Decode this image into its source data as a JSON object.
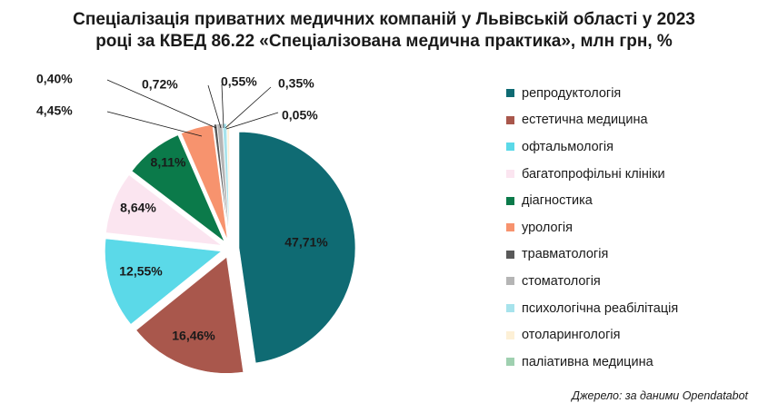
{
  "chart_data": {
    "type": "pie",
    "title": "Спеціалізація приватних медичних компаній у Львівській області у 2023 році за КВЕД 86.22 «Спеціалізована медична практика», млн грн, %",
    "title_lines": [
      "Спеціалізація приватних медичних компаній у Львівській області у 2023",
      "році за КВЕД 86.22 «Спеціалізована медична практика», млн грн, %"
    ],
    "legend_position": "right",
    "exploded": true,
    "slices": [
      {
        "name": "репродуктологія",
        "value": 47.71,
        "label": "47,71%",
        "color": "#0f6b73"
      },
      {
        "name": "естетична медицина",
        "value": 16.46,
        "label": "16,46%",
        "color": "#a9574c"
      },
      {
        "name": "офтальмологія",
        "value": 12.55,
        "label": "12,55%",
        "color": "#5bd9e8"
      },
      {
        "name": "багатопрофільні клініки",
        "value": 8.64,
        "label": "8,64%",
        "color": "#fbe5f0"
      },
      {
        "name": "діагностика",
        "value": 8.11,
        "label": "8,11%",
        "color": "#0b7a4a"
      },
      {
        "name": "урологія",
        "value": 4.45,
        "label": "4,45%",
        "color": "#f7936e"
      },
      {
        "name": "травматологія",
        "value": 0.4,
        "label": "0,40%",
        "color": "#595959"
      },
      {
        "name": "стоматологія",
        "value": 0.72,
        "label": "0,72%",
        "color": "#b5b5b5"
      },
      {
        "name": "психологічна реабілітація",
        "value": 0.55,
        "label": "0,55%",
        "color": "#a7e3ec"
      },
      {
        "name": "отоларингологія",
        "value": 0.35,
        "label": "0,35%",
        "color": "#fdf0d6"
      },
      {
        "name": "паліативна медицина",
        "value": 0.05,
        "label": "0,05%",
        "color": "#9fd0b0"
      }
    ]
  },
  "source": "Джерело: за даними Opendatabot"
}
